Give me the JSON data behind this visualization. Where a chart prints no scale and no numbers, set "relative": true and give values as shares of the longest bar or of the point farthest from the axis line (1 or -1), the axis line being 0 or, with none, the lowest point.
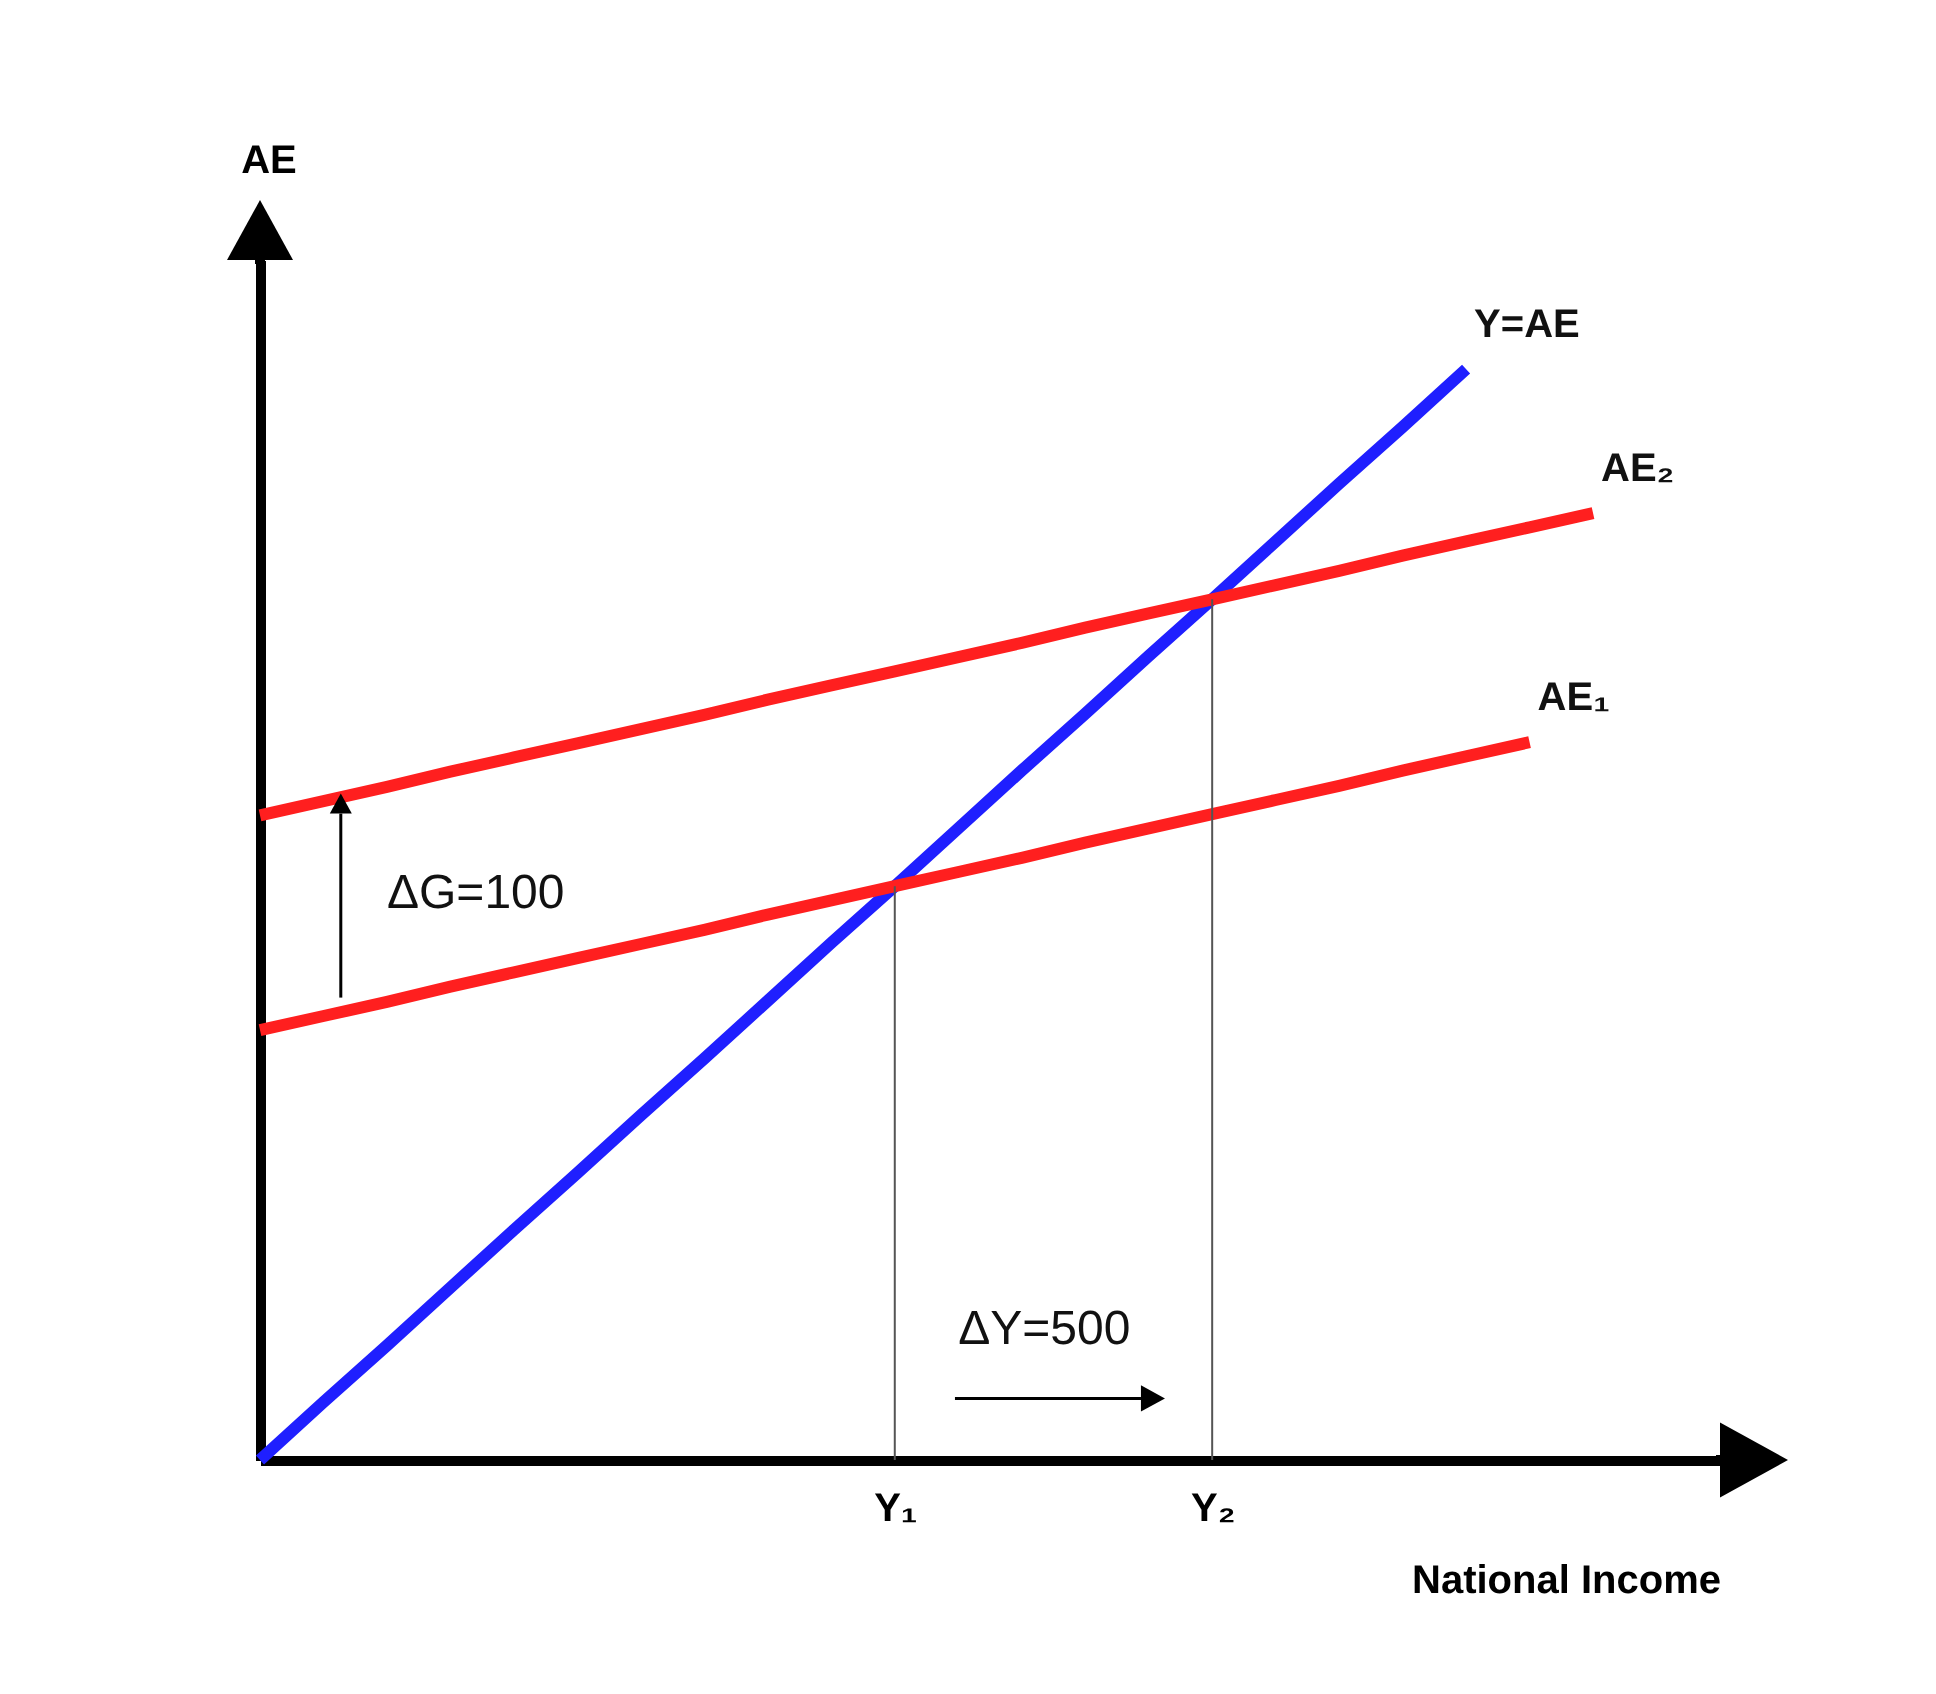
{
  "chart_data": {
    "type": "line",
    "relative": true,
    "xlabel": "National Income",
    "ylabel": "AE",
    "categories": [
      null,
      null,
      null,
      null,
      null,
      null,
      null,
      null,
      null,
      null,
      "Y₁",
      null,
      null,
      null,
      null,
      "Y₂",
      null,
      null,
      null,
      null,
      null,
      null,
      null,
      null
    ],
    "series": [
      {
        "name": "Y=AE",
        "color": "#1f1fff",
        "values": [
          0,
          0.053,
          0.105,
          0.158,
          0.211,
          0.263,
          0.316,
          0.368,
          0.421,
          0.474,
          0.526,
          0.579,
          0.632,
          0.684,
          0.737,
          0.789,
          0.842,
          0.895,
          0.947,
          1,
          null,
          null,
          null,
          null
        ]
      },
      {
        "name": "AE₂",
        "color": "#ff1f1f",
        "values": [
          0.591,
          0.604,
          0.617,
          0.631,
          0.644,
          0.657,
          0.67,
          0.683,
          0.697,
          0.71,
          0.723,
          0.736,
          0.749,
          0.763,
          0.776,
          0.789,
          0.802,
          0.815,
          0.829,
          0.842,
          0.855,
          0.868,
          null,
          null
        ]
      },
      {
        "name": "AE₁",
        "color": "#ff1f1f",
        "values": [
          0.394,
          0.407,
          0.42,
          0.434,
          0.447,
          0.46,
          0.473,
          0.486,
          0.5,
          0.513,
          0.526,
          0.539,
          0.552,
          0.566,
          0.579,
          0.592,
          0.605,
          0.618,
          0.632,
          0.645,
          0.658,
          null,
          null,
          null
        ]
      }
    ],
    "ref_lines": [
      {
        "axis": "x",
        "value": "Y₁",
        "color": "#555555"
      },
      {
        "axis": "x",
        "value": "Y₂",
        "color": "#555555"
      }
    ],
    "annotations": [
      "ΔG=100",
      "ΔY=500"
    ],
    "grid": false
  }
}
